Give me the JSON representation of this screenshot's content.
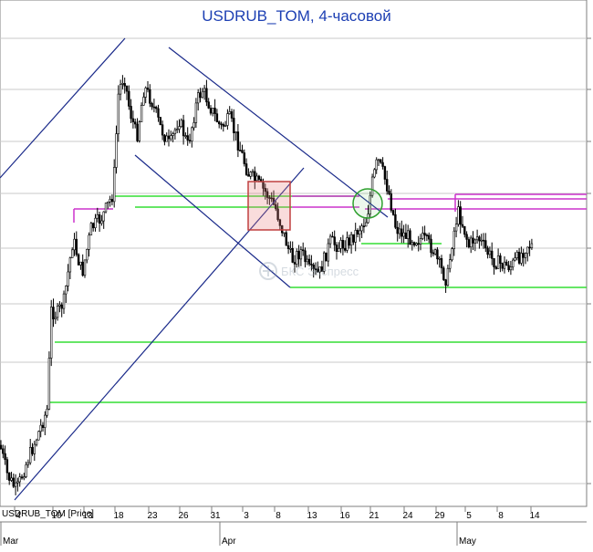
{
  "chart_data": {
    "type": "candlestick",
    "title": "USDRUB_TOM, 4-часовой",
    "series_label": "USDRUB_TOM [Price]",
    "watermark": "БКС Экспресс",
    "x_ticks": [
      "4",
      "10",
      "13",
      "18",
      "23",
      "26",
      "31",
      "3",
      "8",
      "13",
      "16",
      "21",
      "24",
      "29",
      "5",
      "8",
      "14"
    ],
    "x_months": [
      "Mar",
      "Apr",
      "May"
    ],
    "grid": true,
    "colors": {
      "title": "#1c3fb3",
      "candles": "#000000",
      "trendlines": "#1a2a8a",
      "support_lines": "#33dd33",
      "resistance_lines": "#cc33cc",
      "highlight_box": "#e88080",
      "circle": "#2ea02e"
    }
  }
}
